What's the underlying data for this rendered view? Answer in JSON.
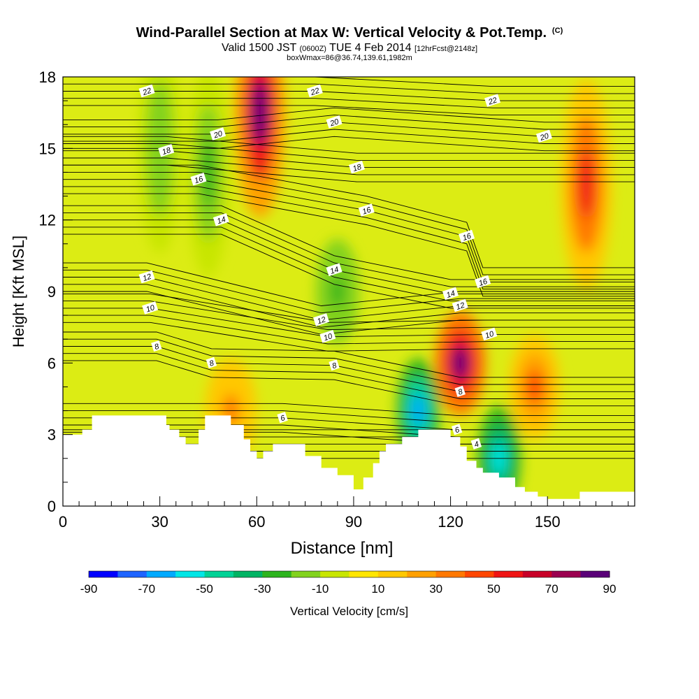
{
  "title": {
    "main": "Wind-Parallel Section at Max W: Vertical Velocity & Pot.Temp.",
    "copyright": "(C)",
    "valid_prefix": "Valid 1500 JST",
    "valid_utc": "(0600Z)",
    "valid_date": "TUE 4 Feb 2014",
    "forecast": "[12hrFcst@2148z]",
    "box": "boxWmax=86@36.74,139.61,1982m"
  },
  "chart_data": {
    "type": "heatmap",
    "xlabel": "Distance [nm]",
    "ylabel": "Height [Kft MSL]",
    "x_ticks": [
      0,
      30,
      60,
      90,
      120,
      150
    ],
    "y_ticks": [
      0,
      3,
      6,
      9,
      12,
      15,
      18
    ],
    "xlim": [
      0,
      177
    ],
    "ylim": [
      0,
      18
    ],
    "colorbar": {
      "label": "Vertical Velocity [cm/s]",
      "tick_labels": [
        "-90",
        "-70",
        "-50",
        "-30",
        "-10",
        "10",
        "30",
        "50",
        "70",
        "90"
      ],
      "colors": [
        "#0000ff",
        "#1e64ff",
        "#00aaff",
        "#00e6e6",
        "#00d296",
        "#00b464",
        "#2db41e",
        "#82d21e",
        "#c8e600",
        "#ffe600",
        "#ffc800",
        "#ffa000",
        "#ff7800",
        "#ff4600",
        "#f01414",
        "#c80028",
        "#9b0050",
        "#5a0078"
      ],
      "bounds": [
        -90,
        90
      ]
    },
    "terrain_profile": {
      "x": [
        0,
        6,
        9,
        30,
        32,
        33,
        36,
        38,
        39,
        42,
        44,
        50,
        52,
        56,
        58,
        60,
        62,
        65,
        72,
        75,
        80,
        85,
        90,
        93,
        96,
        98,
        100,
        105,
        110,
        115,
        120,
        123,
        125,
        128,
        130,
        135,
        140,
        143,
        147,
        150,
        160,
        177
      ],
      "y": [
        3.0,
        3.2,
        3.8,
        3.8,
        3.4,
        3.2,
        2.9,
        2.6,
        2.6,
        3.2,
        3.8,
        3.8,
        3.4,
        2.8,
        2.3,
        2.0,
        2.3,
        2.6,
        2.6,
        2.1,
        1.6,
        1.3,
        0.7,
        1.2,
        1.8,
        2.3,
        2.6,
        2.9,
        3.2,
        3.2,
        2.9,
        2.5,
        1.9,
        1.6,
        1.4,
        1.2,
        0.8,
        0.6,
        0.4,
        0.3,
        0.6,
        0.6
      ]
    },
    "features": [
      {
        "kind": "updraft",
        "x": 61,
        "y": 16.5,
        "w_cm_s": 80
      },
      {
        "kind": "updraft",
        "x": 123,
        "y": 6.0,
        "w_cm_s": 86
      },
      {
        "kind": "updraft",
        "x": 162,
        "y": 13.5,
        "w_cm_s": 50
      },
      {
        "kind": "updraft",
        "x": 52,
        "y": 4.0,
        "w_cm_s": 30
      },
      {
        "kind": "updraft",
        "x": 146,
        "y": 5.0,
        "w_cm_s": 40
      },
      {
        "kind": "downdraft",
        "x": 110,
        "y": 4.0,
        "w_cm_s": -70
      },
      {
        "kind": "downdraft",
        "x": 135,
        "y": 2.0,
        "w_cm_s": -60
      },
      {
        "kind": "downdraft",
        "x": 85,
        "y": 9.0,
        "w_cm_s": -30
      },
      {
        "kind": "downdraft",
        "x": 45,
        "y": 14.0,
        "w_cm_s": -25
      },
      {
        "kind": "downdraft",
        "x": 30,
        "y": 15.0,
        "w_cm_s": -20
      }
    ],
    "theta_contour_labels": [
      {
        "text": "22",
        "x": 26,
        "y": 17.4
      },
      {
        "text": "22",
        "x": 78,
        "y": 17.4
      },
      {
        "text": "22",
        "x": 133,
        "y": 17.0
      },
      {
        "text": "20",
        "x": 48,
        "y": 15.6
      },
      {
        "text": "20",
        "x": 84,
        "y": 16.1
      },
      {
        "text": "20",
        "x": 149,
        "y": 15.5
      },
      {
        "text": "18",
        "x": 32,
        "y": 14.9
      },
      {
        "text": "18",
        "x": 91,
        "y": 14.2
      },
      {
        "text": "16",
        "x": 42,
        "y": 13.7
      },
      {
        "text": "16",
        "x": 94,
        "y": 12.4
      },
      {
        "text": "16",
        "x": 125,
        "y": 11.3
      },
      {
        "text": "16",
        "x": 130,
        "y": 9.4
      },
      {
        "text": "14",
        "x": 49,
        "y": 12.0
      },
      {
        "text": "14",
        "x": 84,
        "y": 9.9
      },
      {
        "text": "14",
        "x": 120,
        "y": 8.9
      },
      {
        "text": "12",
        "x": 26,
        "y": 9.6
      },
      {
        "text": "12",
        "x": 80,
        "y": 7.8
      },
      {
        "text": "12",
        "x": 123,
        "y": 8.4
      },
      {
        "text": "10",
        "x": 27,
        "y": 8.3
      },
      {
        "text": "10",
        "x": 82,
        "y": 7.1
      },
      {
        "text": "10",
        "x": 132,
        "y": 7.2
      },
      {
        "text": "8",
        "x": 29,
        "y": 6.7
      },
      {
        "text": "8",
        "x": 46,
        "y": 6.0
      },
      {
        "text": "8",
        "x": 84,
        "y": 5.9
      },
      {
        "text": "8",
        "x": 123,
        "y": 4.8
      },
      {
        "text": "6",
        "x": 68,
        "y": 3.7
      },
      {
        "text": "6",
        "x": 122,
        "y": 3.2
      },
      {
        "text": "4",
        "x": 128,
        "y": 2.6
      }
    ]
  }
}
